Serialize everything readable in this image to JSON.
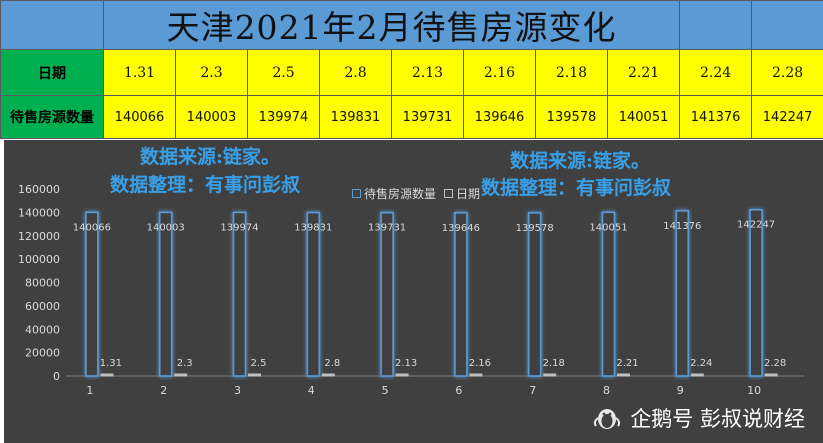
{
  "table": {
    "title": "天津2021年2月待售房源变化",
    "date_header": "日期",
    "count_header": "待售房源数量",
    "dates": [
      "1.31",
      "2.3",
      "2.5",
      "2.8",
      "2.13",
      "2.16",
      "2.18",
      "2.21",
      "2.24",
      "2.28"
    ],
    "counts": [
      "140066",
      "140003",
      "139974",
      "139831",
      "139731",
      "139646",
      "139578",
      "140051",
      "141376",
      "142247"
    ]
  },
  "notes": {
    "source_left_1": "数据来源:链家。",
    "source_left_2": "数据整理：有事问彭叔",
    "source_right_1": "数据来源:链家。",
    "source_right_2": "数据整理：有事问彭叔"
  },
  "watermark": "企鹅号 彭叔说财经",
  "colors": {
    "title_bg": "#5b9bd5",
    "row_bg": "#ffff00",
    "header_bg": "#00b050",
    "chart_bg": "#404040",
    "bar_outline": "#5b9bd5",
    "note_text": "#38a0e8"
  },
  "chart_data": {
    "type": "bar",
    "categories": [
      "1",
      "2",
      "3",
      "4",
      "5",
      "6",
      "7",
      "8",
      "9",
      "10"
    ],
    "series": [
      {
        "name": "待售房源数量",
        "values": [
          140066,
          140003,
          139974,
          139831,
          139731,
          139646,
          139578,
          140051,
          141376,
          142247
        ]
      },
      {
        "name": "日期",
        "values": [
          1.31,
          2.3,
          2.5,
          2.8,
          2.13,
          2.16,
          2.18,
          2.21,
          2.24,
          2.28
        ]
      }
    ],
    "yticks": [
      "0",
      "20000",
      "40000",
      "60000",
      "80000",
      "100000",
      "120000",
      "140000",
      "160000"
    ],
    "ylim": [
      0,
      160000
    ],
    "grid": false,
    "legend": "top-center"
  }
}
